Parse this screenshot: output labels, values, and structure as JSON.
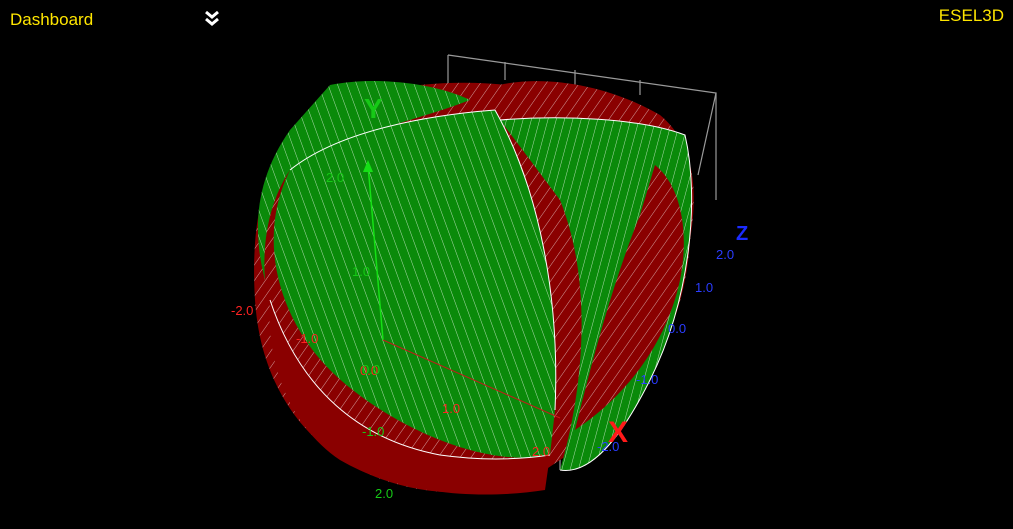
{
  "header": {
    "dashboard_label": "Dashboard",
    "brand": "ESEL3D",
    "menu_icon": "double-chevron-down-icon"
  },
  "axes": {
    "x": {
      "label": "X",
      "color": "#ff1a1a",
      "ticks": [
        "-2.0",
        "-1.0",
        "0.0",
        "1.0",
        "2.0"
      ]
    },
    "y": {
      "label": "Y",
      "color": "#16c916",
      "ticks": [
        "-1.0",
        "0.0",
        "1.0",
        "2.0",
        "2.0"
      ]
    },
    "z": {
      "label": "Z",
      "color": "#1b2cff",
      "ticks": [
        "2.0",
        "1.0",
        "0.0",
        "-1.0",
        "-2.0"
      ]
    }
  },
  "colors": {
    "surface_red": "#8a0000",
    "surface_green": "#0a8a0a",
    "mesh": "#ffffff",
    "box": "#9a9a9a"
  }
}
